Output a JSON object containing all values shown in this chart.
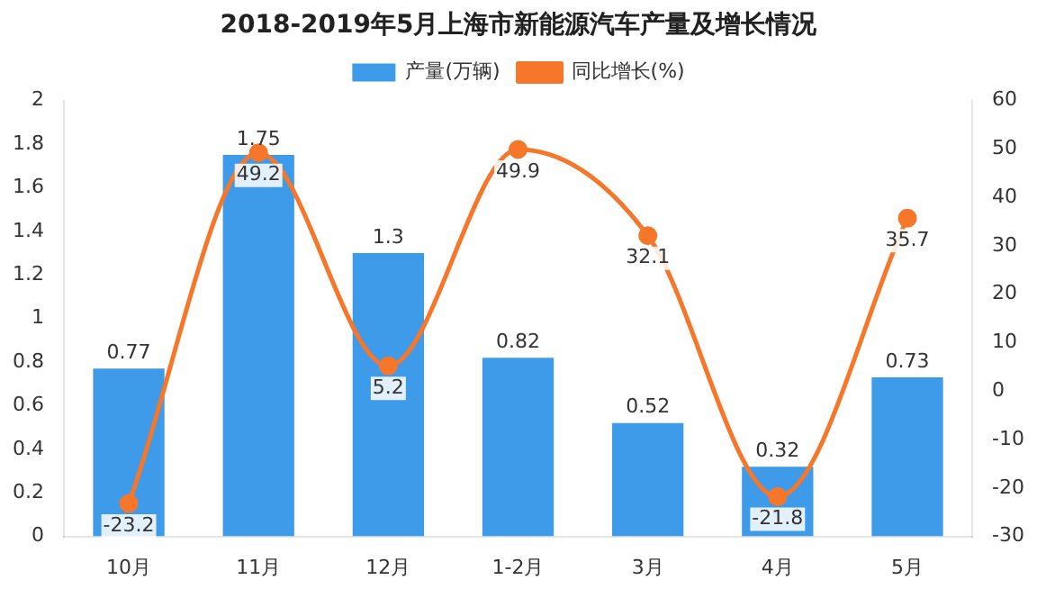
{
  "chart_data": {
    "type": "bar",
    "title": "2018-2019年5月上海市新能源汽车产量及增长情况",
    "categories": [
      "10月",
      "11月",
      "12月",
      "1-2月",
      "3月",
      "4月",
      "5月"
    ],
    "series": [
      {
        "name": "产量(万辆)",
        "color": "#3d9be9",
        "values": [
          0.77,
          1.75,
          1.3,
          0.82,
          0.52,
          0.32,
          0.73
        ]
      },
      {
        "name": "同比增长(%)",
        "type": "line",
        "axis": "y2",
        "color": "#f6762a",
        "values": [
          -23.2,
          49.2,
          5.2,
          49.9,
          32.1,
          -21.8,
          35.7
        ]
      }
    ],
    "ylim": [
      0,
      2
    ],
    "yticks": [
      0,
      0.2,
      0.4,
      0.6,
      0.8,
      1,
      1.2,
      1.4,
      1.6,
      1.8,
      2
    ],
    "y2lim": [
      -30,
      60
    ],
    "y2ticks": [
      -30,
      -20,
      -10,
      0,
      10,
      20,
      30,
      40,
      50,
      60
    ],
    "data_labels": true,
    "legend": "top",
    "marker": "circle",
    "grid": false
  }
}
